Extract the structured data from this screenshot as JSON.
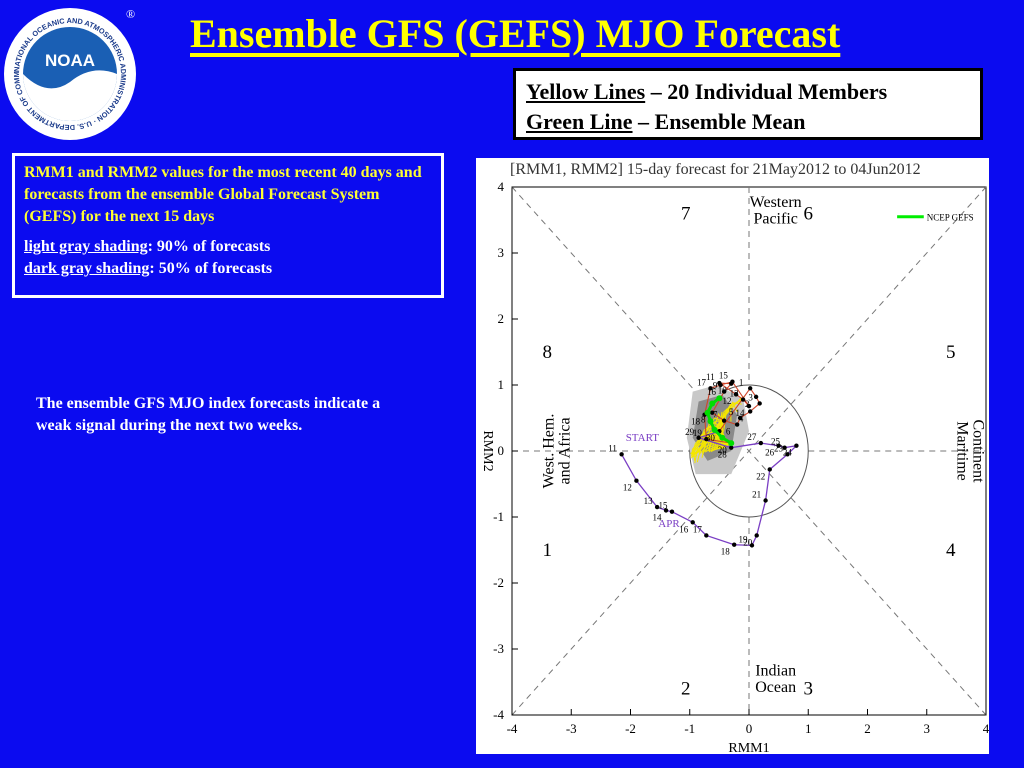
{
  "page": {
    "title": "Ensemble GFS (GEFS) MJO Forecast"
  },
  "logo": {
    "text": "NOAA",
    "ring_text": "NATIONAL OCEANIC AND ATMOSPHERIC ADMINISTRATION · U.S. DEPARTMENT OF COMMERCE",
    "mark": "®"
  },
  "legend": {
    "yellow_label": "Yellow Lines",
    "yellow_text": " – 20 Individual Members",
    "green_label": "Green Line",
    "green_text": " – Ensemble Mean"
  },
  "description": {
    "main": "RMM1 and RMM2 values for the most recent 40 days and forecasts from the ensemble Global Forecast System (GEFS) for the next 15 days",
    "light_label": "light gray shading",
    "light_text": ": 90% of forecasts",
    "dark_label": "dark gray shading",
    "dark_text": ": 50% of forecasts"
  },
  "note": "The ensemble GFS MJO index forecasts indicate a weak signal during the next two weeks.",
  "chart_data": {
    "type": "scatter",
    "title": "[RMM1, RMM2] 15-day forecast for 21May2012 to 04Jun2012",
    "xlabel": "RMM1",
    "ylabel": "RMM2",
    "xlim": [
      -4,
      4
    ],
    "ylim": [
      -4,
      4
    ],
    "x_ticks": [
      "-4",
      "-3",
      "-2",
      "-1",
      "0",
      "1",
      "2",
      "3",
      "4"
    ],
    "y_ticks": [
      "4",
      "3",
      "2",
      "1",
      "0",
      "-1",
      "-2",
      "-3",
      "-4"
    ],
    "phases": [
      "1",
      "2",
      "3",
      "4",
      "5",
      "6",
      "7",
      "8"
    ],
    "regions": {
      "top": [
        "Western",
        "Pacific"
      ],
      "bottom": [
        "Indian",
        "Ocean"
      ],
      "left": [
        "West. Hem.",
        "and Africa"
      ],
      "right": [
        "Maritime",
        "Continent"
      ]
    },
    "legend_entry": "NCEP GEFS",
    "markers": {
      "start": "START",
      "month": "APR"
    },
    "unit_circle_radius": 1,
    "observed": {
      "points": [
        {
          "label": "11",
          "x": -2.15,
          "y": -0.05
        },
        {
          "label": "12",
          "x": -1.9,
          "y": -0.45
        },
        {
          "label": "13",
          "x": -1.55,
          "y": -0.85
        },
        {
          "label": "14",
          "x": -1.4,
          "y": -0.9
        },
        {
          "label": "15",
          "x": -1.3,
          "y": -0.92
        },
        {
          "label": "16",
          "x": -0.95,
          "y": -1.08
        },
        {
          "label": "17",
          "x": -0.72,
          "y": -1.28
        },
        {
          "label": "18",
          "x": -0.25,
          "y": -1.42
        },
        {
          "label": "19",
          "x": 0.05,
          "y": -1.43
        },
        {
          "label": "20",
          "x": 0.13,
          "y": -1.28
        },
        {
          "label": "21",
          "x": 0.28,
          "y": -0.75
        },
        {
          "label": "22",
          "x": 0.35,
          "y": -0.28
        },
        {
          "label": "23",
          "x": 0.65,
          "y": -0.05
        },
        {
          "label": "24",
          "x": 0.8,
          "y": 0.08
        },
        {
          "label": "25",
          "x": 0.6,
          "y": 0.05
        },
        {
          "label": "26",
          "x": 0.5,
          "y": 0.08
        },
        {
          "label": "27",
          "x": 0.2,
          "y": 0.12
        },
        {
          "label": "28",
          "x": -0.3,
          "y": 0.05
        },
        {
          "label": "29",
          "x": -0.85,
          "y": 0.2
        },
        {
          "label": "30",
          "x": -0.5,
          "y": 0.3
        },
        {
          "label": "1",
          "x": 0.02,
          "y": 0.95
        },
        {
          "label": "2",
          "x": 0.12,
          "y": 0.82
        },
        {
          "label": "3",
          "x": 0.18,
          "y": 0.72
        },
        {
          "label": "4",
          "x": 0.02,
          "y": 0.6
        },
        {
          "label": "5",
          "x": -0.15,
          "y": 0.5
        },
        {
          "label": "6",
          "x": -0.2,
          "y": 0.4
        },
        {
          "label": "7",
          "x": -0.42,
          "y": 0.46
        },
        {
          "label": "8",
          "x": -0.62,
          "y": 0.58
        },
        {
          "label": "9",
          "x": -0.42,
          "y": 0.9
        },
        {
          "label": "10",
          "x": -0.3,
          "y": 1.02
        },
        {
          "label": "11",
          "x": -0.5,
          "y": 1.03
        },
        {
          "label": "12",
          "x": -0.22,
          "y": 0.86
        },
        {
          "label": "13",
          "x": -0.1,
          "y": 0.78
        },
        {
          "label": "14",
          "x": 0.0,
          "y": 0.68
        },
        {
          "label": "15",
          "x": -0.28,
          "y": 1.05
        },
        {
          "label": "16",
          "x": -0.48,
          "y": 1.0
        },
        {
          "label": "17",
          "x": -0.65,
          "y": 0.95
        },
        {
          "label": "18",
          "x": -0.75,
          "y": 0.55
        },
        {
          "label": "19",
          "x": -0.72,
          "y": 0.18
        },
        {
          "label": "20",
          "x": -0.3,
          "y": 0.12
        }
      ]
    },
    "ensemble_mean": [
      {
        "x": -0.3,
        "y": 0.12
      },
      {
        "x": -0.45,
        "y": 0.2
      },
      {
        "x": -0.58,
        "y": 0.32
      },
      {
        "x": -0.65,
        "y": 0.45
      },
      {
        "x": -0.7,
        "y": 0.58
      },
      {
        "x": -0.62,
        "y": 0.72
      },
      {
        "x": -0.5,
        "y": 0.8
      }
    ]
  }
}
